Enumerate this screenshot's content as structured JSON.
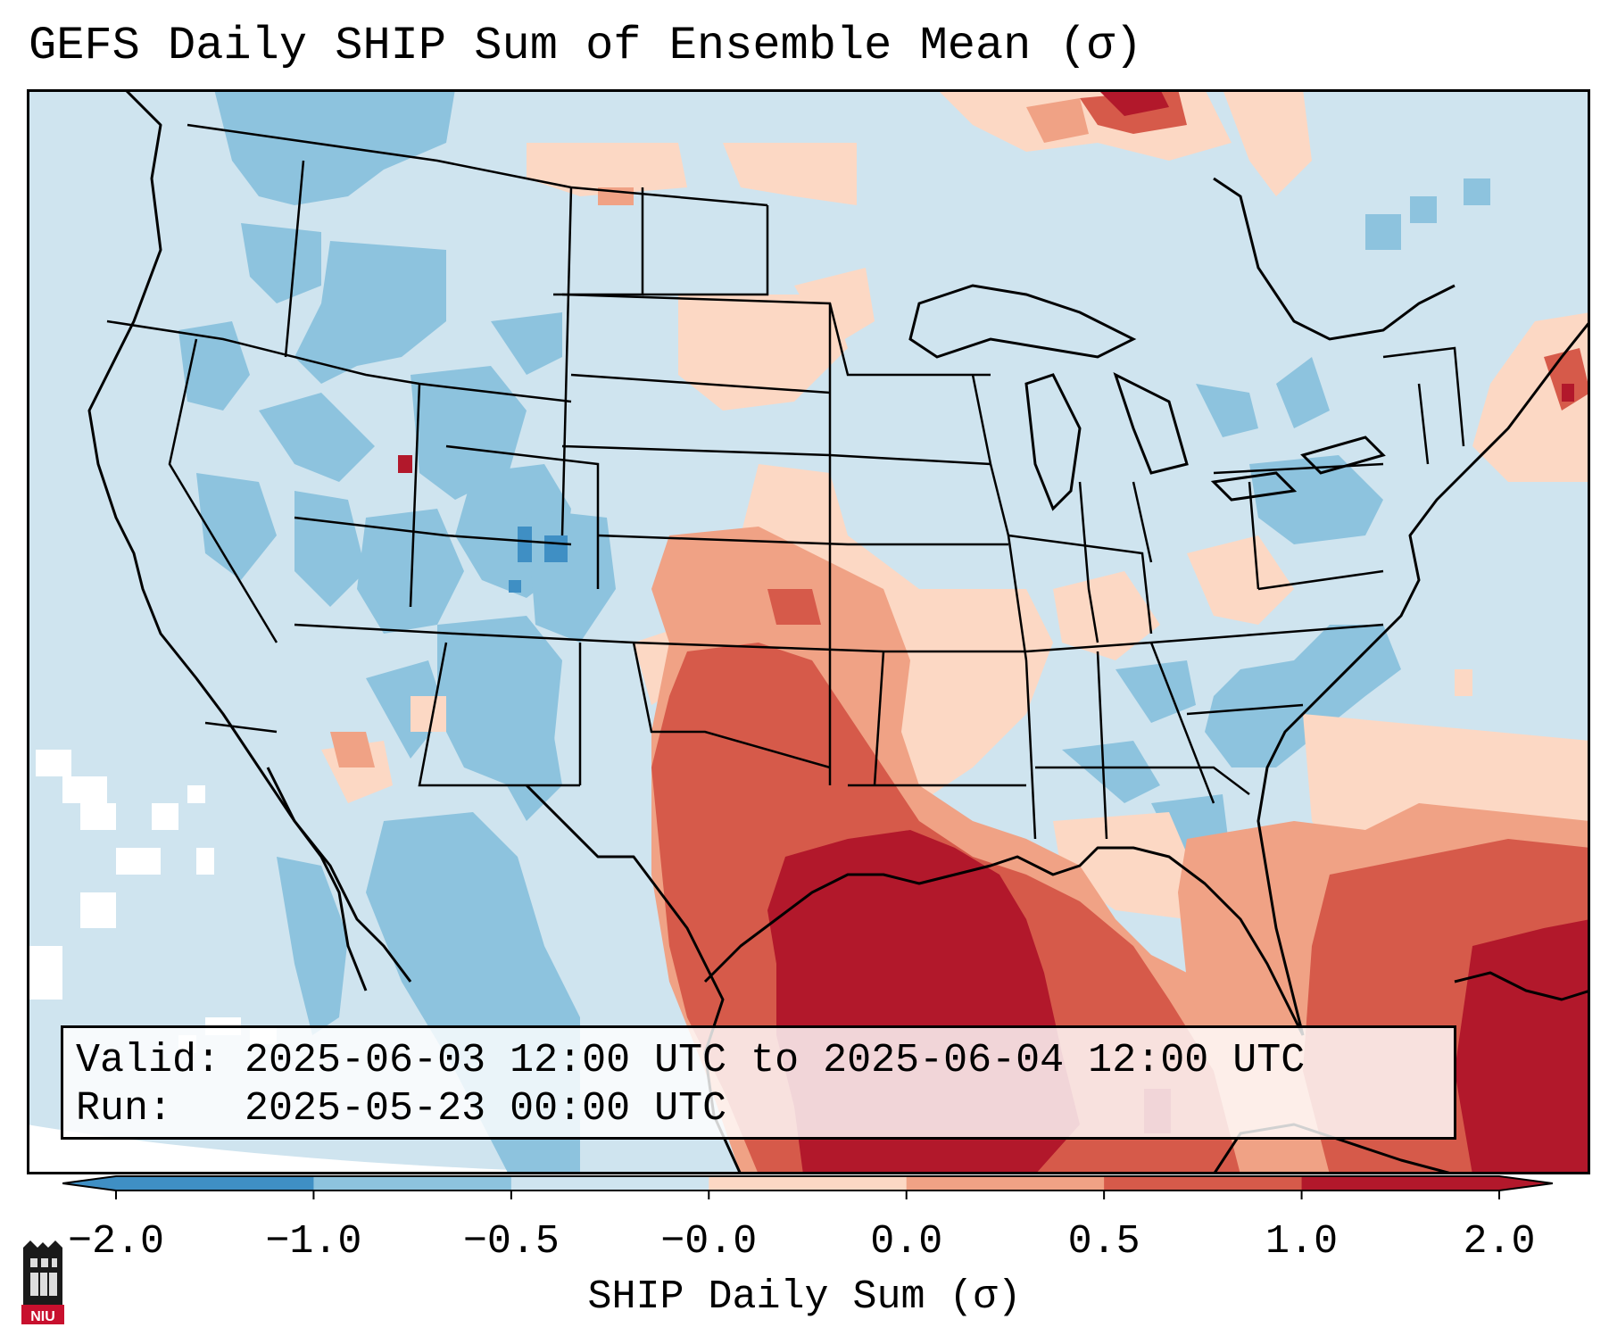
{
  "title": "GEFS Daily SHIP Sum of Ensemble Mean (σ)",
  "info": {
    "valid_line": "Valid: 2025-06-03 12:00 UTC to 2025-06-04 12:00 UTC",
    "run_line": "Run:   2025-05-23 00:00 UTC"
  },
  "colorbar": {
    "label": "SHIP Daily Sum (σ)",
    "tick_labels": [
      "−2.0",
      "−1.0",
      "−0.5",
      "−0.0",
      "0.0",
      "0.5",
      "1.0",
      "2.0"
    ],
    "colors": [
      "#3f8fc4",
      "#8dc3de",
      "#cfe4ef",
      "#ffffff",
      "#fcd8c4",
      "#f0a285",
      "#d65a4a",
      "#b2182b"
    ]
  },
  "logo": {
    "text": "NIU"
  },
  "colors": {
    "ocean": "#cfe4ef",
    "state_borders": "#000000"
  }
}
